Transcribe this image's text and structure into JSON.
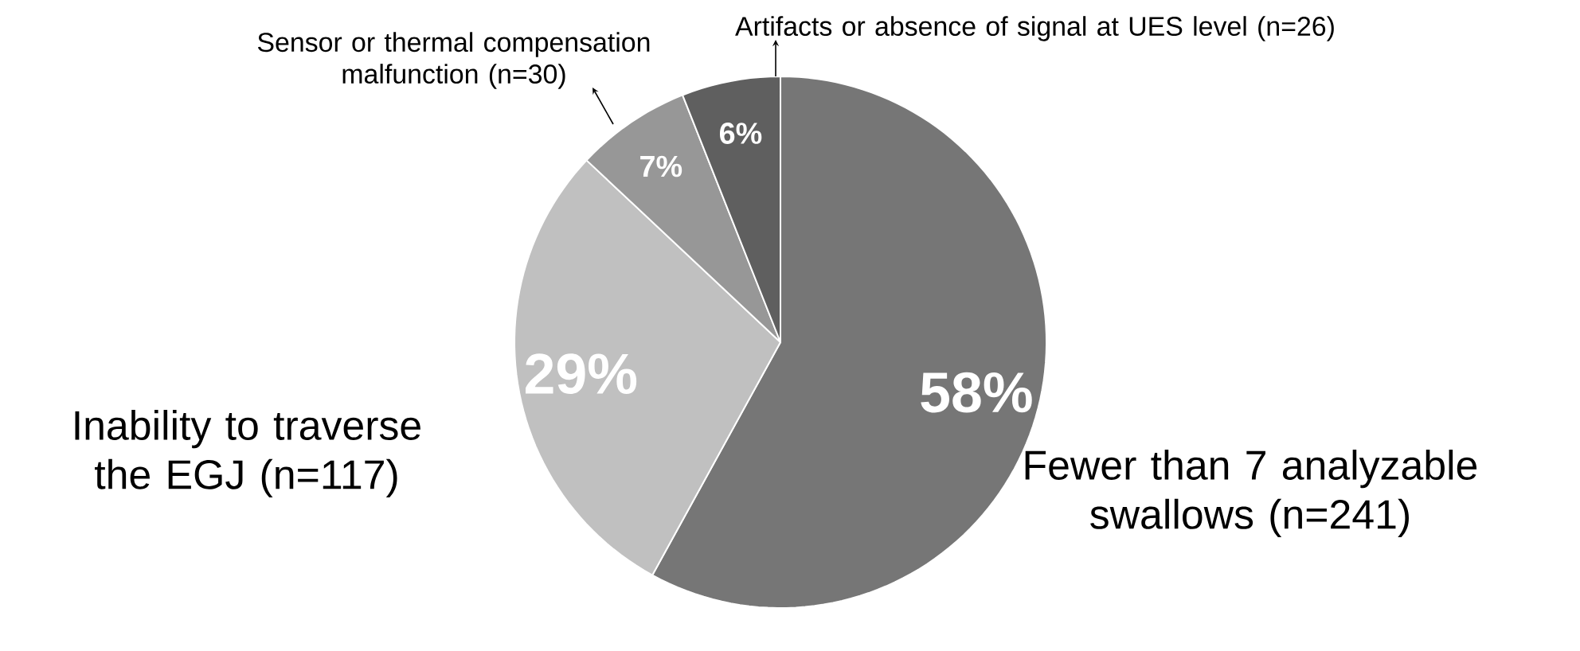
{
  "chart_data": {
    "type": "pie",
    "categories": [
      "Fewer than 7 analyzable swallows (n=241)",
      "Inability to traverse the EGJ (n=117)",
      "Sensor or thermal compensation malfunction (n=30)",
      "Artifacts or absence of signal at UES level (n=26)"
    ],
    "values": [
      58,
      29,
      7,
      6
    ],
    "value_labels": [
      "58%",
      "29%",
      "7%",
      "6%"
    ],
    "colors": [
      "#767676",
      "#c0c0c0",
      "#979797",
      "#5f5f5f"
    ]
  }
}
